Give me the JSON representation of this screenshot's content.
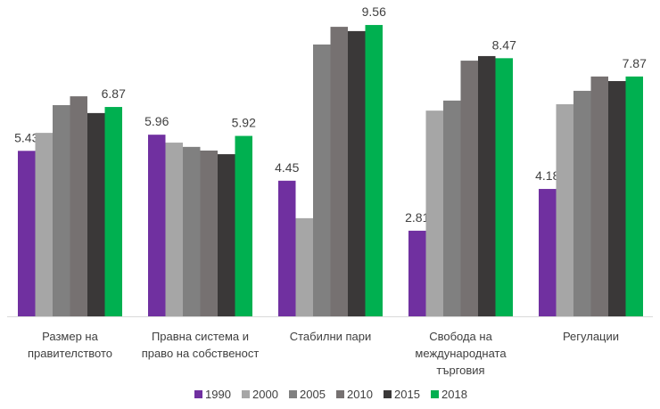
{
  "chart_data": {
    "type": "bar",
    "title": "",
    "xlabel": "",
    "ylabel": "",
    "ylim": [
      0,
      10
    ],
    "grid": false,
    "legend_position": "bottom",
    "categories": [
      [
        "Размер на",
        "правителството"
      ],
      [
        "Правна система и",
        "право на собственост"
      ],
      [
        "Стабилни пари"
      ],
      [
        "Свобода на",
        "международната",
        "търговия"
      ],
      [
        "Регулации"
      ]
    ],
    "series": [
      {
        "name": "1990",
        "color": "#7030A0",
        "values": [
          5.43,
          5.96,
          4.45,
          2.81,
          4.18
        ],
        "labels": [
          "5.43",
          "5.96",
          "4.45",
          "2.81",
          "4.18"
        ]
      },
      {
        "name": "2000",
        "color": "#A6A6A6",
        "values": [
          6.02,
          5.7,
          3.22,
          6.75,
          6.96
        ]
      },
      {
        "name": "2005",
        "color": "#808080",
        "values": [
          6.93,
          5.56,
          8.92,
          7.08,
          7.4
        ]
      },
      {
        "name": "2010",
        "color": "#767171",
        "values": [
          7.22,
          5.44,
          9.5,
          8.39,
          7.87
        ]
      },
      {
        "name": "2015",
        "color": "#3A3838",
        "values": [
          6.67,
          5.32,
          9.36,
          8.54,
          7.72
        ]
      },
      {
        "name": "2018",
        "color": "#00B050",
        "values": [
          6.87,
          5.92,
          9.56,
          8.47,
          7.87
        ],
        "labels": [
          "6.87",
          "5.92",
          "9.56",
          "8.47",
          "7.87"
        ]
      }
    ]
  }
}
